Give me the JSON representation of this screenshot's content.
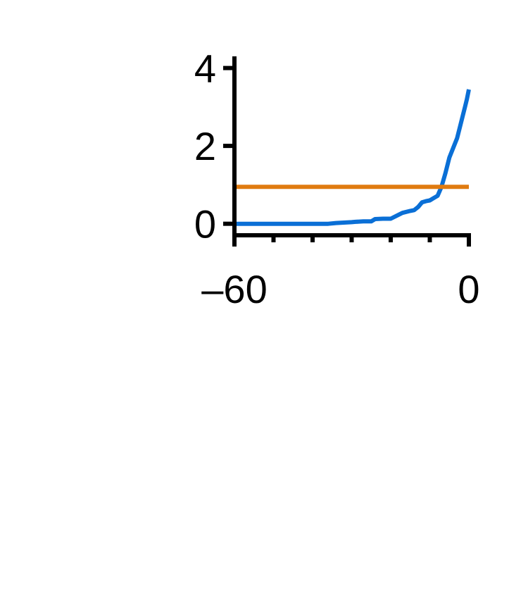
{
  "chart_data": {
    "type": "line",
    "title": "",
    "xlabel": "",
    "ylabel": "",
    "xlim": [
      -60,
      0
    ],
    "ylim": [
      -0.35,
      4.3
    ],
    "x_ticks": [
      -60,
      -50,
      -40,
      -30,
      -20,
      -10,
      0
    ],
    "x_tick_labels": [
      {
        "value": -60,
        "label": "–60"
      },
      {
        "value": 0,
        "label": "0"
      }
    ],
    "y_ticks": [
      0,
      2,
      4
    ],
    "y_tick_labels": [
      {
        "value": 0,
        "label": "0"
      },
      {
        "value": 2,
        "label": "2"
      },
      {
        "value": 4,
        "label": "4"
      }
    ],
    "grid": false,
    "legend": "none",
    "series": [
      {
        "color": "#0a6fd6",
        "x": [
          -60,
          -56,
          -52,
          -48,
          -44,
          -40,
          -36,
          -34,
          -32,
          -30,
          -29,
          -27,
          -25,
          -24,
          -22,
          -20,
          -18,
          -17,
          -15,
          -14,
          -13,
          -12,
          -11,
          -10,
          -9,
          -8,
          -7,
          -6,
          -5,
          -4,
          -3,
          -2,
          -1.5,
          -1,
          -0.5,
          0
        ],
        "y": [
          0,
          0,
          0,
          0,
          0,
          0,
          0,
          0.02,
          0.03,
          0.04,
          0.05,
          0.06,
          0.06,
          0.12,
          0.13,
          0.13,
          0.23,
          0.28,
          0.33,
          0.35,
          0.43,
          0.55,
          0.58,
          0.6,
          0.66,
          0.72,
          0.95,
          1.3,
          1.7,
          1.95,
          2.2,
          2.6,
          2.8,
          3.0,
          3.2,
          3.45
        ]
      },
      {
        "color": "#e07b10",
        "x": [
          -60,
          0
        ],
        "y": [
          0.95,
          0.95
        ]
      }
    ]
  }
}
